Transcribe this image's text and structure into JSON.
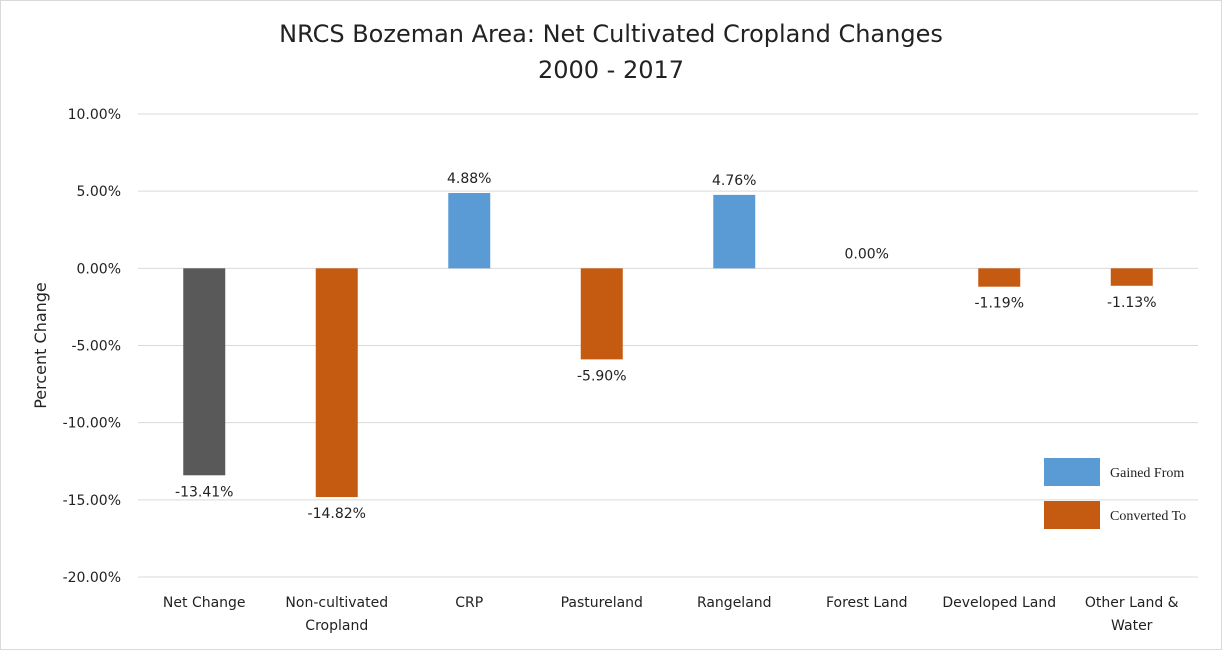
{
  "chart_data": {
    "type": "bar",
    "title": "NRCS Bozeman Area: Net Cultivated Cropland Changes",
    "subtitle": "2000 - 2017",
    "ylabel": "Percent Change",
    "xlabel": "",
    "ylim": [
      -20,
      10
    ],
    "yticks": [
      "10.00%",
      "5.00%",
      "0.00%",
      "-5.00%",
      "-10.00%",
      "-15.00%",
      "-20.00%"
    ],
    "grid": true,
    "legend_position": "right",
    "categories": [
      [
        "Net Change"
      ],
      [
        "Non-cultivated",
        "Cropland"
      ],
      [
        "CRP"
      ],
      [
        "Pastureland"
      ],
      [
        "Rangeland"
      ],
      [
        "Forest Land"
      ],
      [
        "Developed Land"
      ],
      [
        "Other Land &",
        "Water"
      ]
    ],
    "values": [
      -13.41,
      -14.82,
      4.88,
      -5.9,
      4.76,
      0.0,
      -1.19,
      -1.13
    ],
    "data_labels": [
      "-13.41%",
      "-14.82%",
      "4.88%",
      "-5.90%",
      "4.76%",
      "0.00%",
      "-1.19%",
      "-1.13%"
    ],
    "bar_series": [
      "net",
      "converted",
      "gained",
      "converted",
      "gained",
      "gained",
      "converted",
      "converted"
    ],
    "legend": [
      {
        "key": "gained",
        "label": "Gained From",
        "color": "#5b9bd5"
      },
      {
        "key": "converted",
        "label": "Converted To",
        "color": "#c55a11"
      }
    ],
    "colors": {
      "net": "#595959",
      "gained": "#5b9bd5",
      "converted": "#c55a11"
    }
  }
}
